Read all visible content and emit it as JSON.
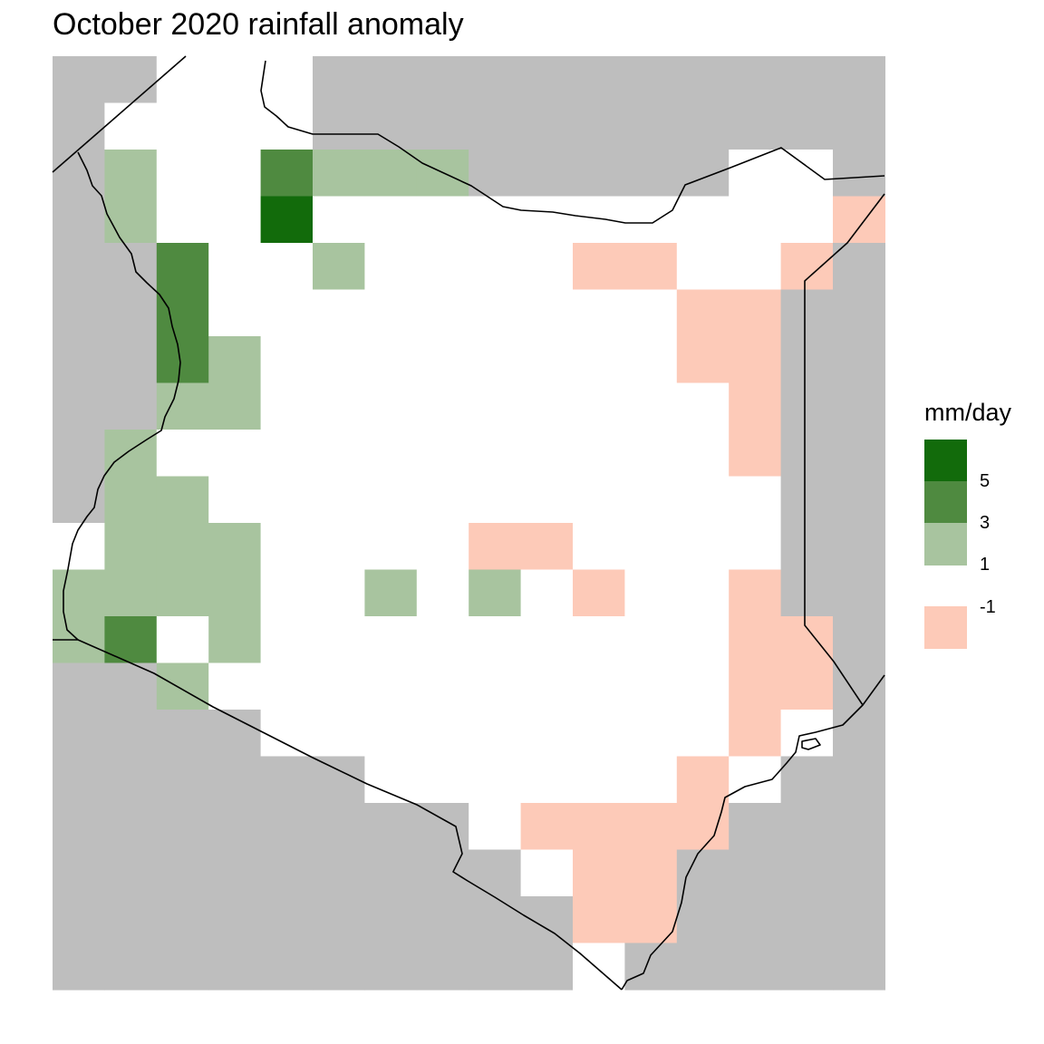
{
  "title": "October 2020 rainfall anomaly",
  "colors": {
    "nodata": "#bebebe",
    "neutral": "#ffffff",
    "c1": "#a8c49f",
    "c3": "#4f8a40",
    "c5": "#126b0b",
    "cm1": "#fdcab8"
  },
  "legend": {
    "title": "mm/day",
    "bins": [
      {
        "color": "c5"
      },
      {
        "color": "c3"
      },
      {
        "color": "c1"
      },
      {
        "color": "cm1"
      }
    ],
    "ticks": [
      "5",
      "3",
      "1",
      "-1"
    ]
  },
  "grid": {
    "cols": 16,
    "rows": 20,
    "legend_codes": {
      "G": "nodata",
      "W": "neutral",
      "1": "c1",
      "3": "c3",
      "5": "c5",
      "N": "cm1"
    },
    "cells": [
      "GGWWWGGGGGGGGGGG",
      "GWWWWGGGGGGGGGGG",
      "G1WW3111GGGGGWWG",
      "G1WW5WWWWWWWWWWN",
      "GG3WW1WWWWNNWWNG",
      "GG3WWWWWWWWWNNGG",
      "GG31WWWWWWWWNNGG",
      "GG11WWWWWWWWWNGG",
      "G1WWWWWWWWWWWNGG",
      "G11WWWWWWWWWWWGG",
      "W111WWWWNNWWWWGG",
      "1111WW1W1WNWWNGG",
      "13W1WWWWWWWWWNNG",
      "GG1WWWWWWWWWWNNG",
      "GGGGWWWWWWWWWNWG",
      "GGGGGGWWWWWWNWGG",
      "GGGGGGGGWNNNNGGG",
      "GGGGGGGGGWNNGGGG",
      "GGGGGGGGGGNNGGGG",
      "GGGGGGGGGGWGGGGG"
    ]
  }
}
